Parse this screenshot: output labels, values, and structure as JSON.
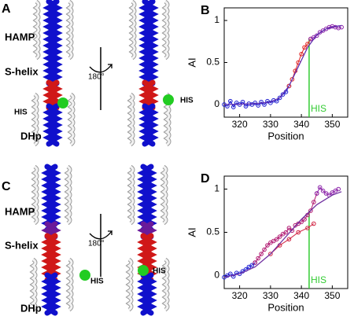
{
  "structures": [
    {
      "panel_label": "A",
      "domains": [
        "HAMP",
        "S-helix",
        "DHp"
      ],
      "his_left": "HIS",
      "his_right": "HIS",
      "rotation": "180°"
    },
    {
      "panel_label": "C",
      "domains": [
        "HAMP",
        "S-helix",
        "DHp"
      ],
      "his_left": "HIS",
      "his_right": "HIS",
      "rotation": "180°"
    }
  ],
  "chart_data": [
    {
      "type": "line",
      "panel_label": "B",
      "xlabel": "Position",
      "ylabel": "AI",
      "xlim": [
        315,
        355
      ],
      "ylim": [
        -0.15,
        1.15
      ],
      "xticks": [
        320,
        330,
        340,
        350
      ],
      "yticks": [
        0,
        0.5,
        1
      ],
      "series": [
        {
          "color": "#1a1ad0",
          "marker": true,
          "x": [
            315,
            316,
            317,
            318,
            319,
            320,
            321,
            322,
            323,
            324,
            325,
            326,
            327,
            328,
            329,
            330,
            331,
            332,
            333,
            334,
            335,
            336
          ],
          "values": [
            0,
            -0.02,
            0.04,
            -0.03,
            0.02,
            0,
            0.03,
            -0.02,
            0.01,
            0,
            0.02,
            -0.01,
            0.03,
            0,
            0.04,
            0.02,
            0.05,
            0.04,
            0.08,
            0.12,
            0.15,
            0.22
          ]
        },
        {
          "color": "#e02020",
          "marker": true,
          "x": [
            336,
            337,
            338,
            339,
            340,
            341,
            342,
            343
          ],
          "values": [
            0.22,
            0.3,
            0.4,
            0.5,
            0.6,
            0.68,
            0.72,
            0.78
          ]
        },
        {
          "color": "#8a20a8",
          "marker": true,
          "x": [
            343,
            344,
            345,
            346,
            347,
            348,
            349,
            350,
            351,
            352,
            353
          ],
          "values": [
            0.78,
            0.8,
            0.82,
            0.86,
            0.88,
            0.9,
            0.92,
            0.93,
            0.92,
            0.91,
            0.92
          ]
        },
        {
          "color": "#6030b0",
          "marker": false,
          "x": [
            315,
            325,
            330,
            333,
            336,
            339,
            342,
            345,
            348,
            351,
            353
          ],
          "values": [
            0,
            0.01,
            0.03,
            0.08,
            0.22,
            0.45,
            0.68,
            0.83,
            0.9,
            0.93,
            0.94
          ]
        }
      ],
      "marker_line": {
        "x": 342.5,
        "y_end": 0.78,
        "label": "HIS",
        "color": "#33cc33"
      }
    },
    {
      "type": "line",
      "panel_label": "D",
      "xlabel": "Position",
      "ylabel": "AI",
      "xlim": [
        315,
        355
      ],
      "ylim": [
        -0.15,
        1.15
      ],
      "xticks": [
        320,
        330,
        340,
        350
      ],
      "yticks": [
        0,
        0.5,
        1
      ],
      "series": [
        {
          "color": "#1a1ad0",
          "marker": true,
          "x": [
            315,
            316,
            317,
            318,
            319,
            320,
            321,
            322,
            323,
            324,
            325
          ],
          "values": [
            -0.02,
            0,
            0.02,
            -0.01,
            0.03,
            0.02,
            0.05,
            0.07,
            0.1,
            0.12,
            0.15
          ]
        },
        {
          "color": "#b01870",
          "marker": true,
          "x": [
            325,
            326,
            327,
            328,
            329,
            330,
            331,
            332,
            333,
            334,
            335,
            336,
            337,
            338,
            339,
            340,
            341,
            342,
            343,
            344,
            345
          ],
          "values": [
            0.15,
            0.2,
            0.25,
            0.3,
            0.35,
            0.38,
            0.4,
            0.42,
            0.45,
            0.48,
            0.5,
            0.55,
            0.52,
            0.58,
            0.6,
            0.62,
            0.65,
            0.7,
            0.75,
            0.85,
            0.95
          ]
        },
        {
          "color": "#d02040",
          "marker": true,
          "x": [
            330,
            333,
            336,
            339,
            342,
            344
          ],
          "values": [
            0.25,
            0.35,
            0.42,
            0.5,
            0.55,
            0.6
          ]
        },
        {
          "color": "#8a20a8",
          "marker": true,
          "x": [
            345,
            346,
            347,
            348,
            349,
            350,
            351,
            352
          ],
          "values": [
            0.95,
            1.02,
            0.98,
            0.95,
            0.93,
            0.96,
            0.98,
            1
          ]
        },
        {
          "color": "#7030a0",
          "marker": false,
          "x": [
            315,
            320,
            325,
            330,
            335,
            340,
            345,
            350,
            353
          ],
          "values": [
            -0.02,
            0.02,
            0.1,
            0.25,
            0.45,
            0.65,
            0.82,
            0.93,
            0.97
          ]
        }
      ],
      "marker_line": {
        "x": 342.5,
        "y_end": 0.75,
        "label": "HIS",
        "color": "#33cc33"
      }
    }
  ]
}
